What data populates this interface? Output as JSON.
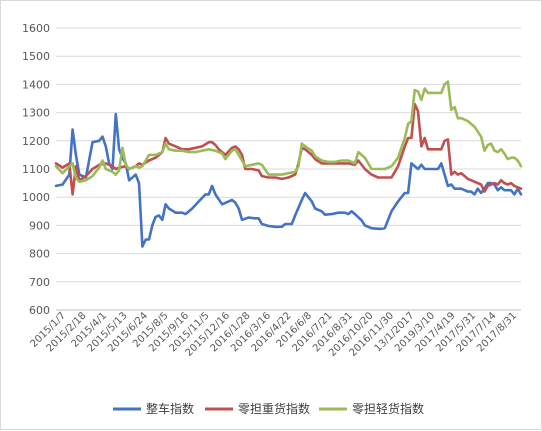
{
  "chart_data": {
    "type": "line",
    "title": "",
    "xlabel": "",
    "ylabel": "",
    "ylim": [
      600,
      1600
    ],
    "yticks": [
      600,
      700,
      800,
      900,
      1000,
      1100,
      1200,
      1300,
      1400,
      1500,
      1600
    ],
    "grid": "horizontal",
    "legend_position": "bottom",
    "x_tick_labels": [
      "2015/1/7",
      "2015/2/18",
      "2015/4/1",
      "2015/5/13",
      "2015/6/24",
      "2015/8/5",
      "2015/9/16",
      "2015/11/5",
      "2015/12/16",
      "2016/1/28",
      "2016/3/16",
      "2016/4/22",
      "2016/6/8",
      "2016/7/21",
      "2016/8/31",
      "2016/10/20",
      "2016/11/30",
      "13/1/2017",
      "2019/3/10",
      "2017/4/19",
      "2017/5/31",
      "2017/7/14",
      "2017/8/31"
    ],
    "x_points": 140,
    "series": [
      {
        "name": "整车指数",
        "color": "#4472c4",
        "points": [
          [
            0,
            1040
          ],
          [
            2,
            1045
          ],
          [
            4,
            1080
          ],
          [
            5,
            1240
          ],
          [
            6,
            1150
          ],
          [
            7,
            1080
          ],
          [
            9,
            1070
          ],
          [
            11,
            1195
          ],
          [
            13,
            1200
          ],
          [
            14,
            1215
          ],
          [
            15,
            1180
          ],
          [
            16,
            1120
          ],
          [
            17,
            1100
          ],
          [
            18,
            1295
          ],
          [
            19,
            1170
          ],
          [
            20,
            1140
          ],
          [
            21,
            1120
          ],
          [
            22,
            1060
          ],
          [
            24,
            1080
          ],
          [
            25,
            1050
          ],
          [
            26,
            825
          ],
          [
            27,
            850
          ],
          [
            28,
            850
          ],
          [
            29,
            900
          ],
          [
            30,
            930
          ],
          [
            31,
            935
          ],
          [
            32,
            920
          ],
          [
            33,
            975
          ],
          [
            34,
            960
          ],
          [
            36,
            945
          ],
          [
            38,
            945
          ],
          [
            39,
            940
          ],
          [
            41,
            960
          ],
          [
            43,
            985
          ],
          [
            45,
            1010
          ],
          [
            46,
            1010
          ],
          [
            47,
            1040
          ],
          [
            48,
            1010
          ],
          [
            50,
            975
          ],
          [
            52,
            985
          ],
          [
            53,
            990
          ],
          [
            54,
            980
          ],
          [
            55,
            960
          ],
          [
            56,
            920
          ],
          [
            58,
            928
          ],
          [
            60,
            925
          ],
          [
            61,
            925
          ],
          [
            62,
            905
          ],
          [
            64,
            898
          ],
          [
            66,
            895
          ],
          [
            68,
            895
          ],
          [
            69,
            905
          ],
          [
            71,
            905
          ],
          [
            72,
            935
          ],
          [
            74,
            990
          ],
          [
            75,
            1015
          ],
          [
            76,
            1000
          ],
          [
            77,
            985
          ],
          [
            78,
            960
          ],
          [
            80,
            950
          ],
          [
            81,
            938
          ],
          [
            83,
            940
          ],
          [
            85,
            945
          ],
          [
            87,
            945
          ],
          [
            88,
            940
          ],
          [
            89,
            950
          ],
          [
            90,
            940
          ],
          [
            92,
            918
          ],
          [
            93,
            900
          ],
          [
            95,
            890
          ],
          [
            97,
            888
          ],
          [
            98,
            888
          ],
          [
            99,
            890
          ],
          [
            100,
            920
          ],
          [
            101,
            950
          ],
          [
            103,
            985
          ],
          [
            104,
            1000
          ],
          [
            105,
            1015
          ],
          [
            106,
            1015
          ],
          [
            107,
            1120
          ],
          [
            108,
            1110
          ],
          [
            109,
            1100
          ],
          [
            110,
            1115
          ],
          [
            111,
            1100
          ],
          [
            113,
            1100
          ],
          [
            115,
            1100
          ],
          [
            116,
            1120
          ],
          [
            117,
            1080
          ],
          [
            118,
            1040
          ],
          [
            119,
            1045
          ],
          [
            120,
            1030
          ],
          [
            122,
            1030
          ],
          [
            124,
            1020
          ],
          [
            125,
            1020
          ],
          [
            126,
            1010
          ],
          [
            127,
            1030
          ],
          [
            128,
            1015
          ],
          [
            129,
            1030
          ],
          [
            130,
            1050
          ],
          [
            131,
            1050
          ],
          [
            132,
            1045
          ],
          [
            133,
            1025
          ],
          [
            134,
            1035
          ],
          [
            135,
            1025
          ],
          [
            136,
            1025
          ],
          [
            137,
            1025
          ],
          [
            138,
            1010
          ],
          [
            139,
            1030
          ],
          [
            140,
            1010
          ]
        ]
      },
      {
        "name": "零担重货指数",
        "color": "#c0504d",
        "points": [
          [
            0,
            1120
          ],
          [
            2,
            1105
          ],
          [
            4,
            1120
          ],
          [
            5,
            1010
          ],
          [
            6,
            1110
          ],
          [
            7,
            1060
          ],
          [
            9,
            1075
          ],
          [
            11,
            1100
          ],
          [
            13,
            1115
          ],
          [
            15,
            1120
          ],
          [
            17,
            1110
          ],
          [
            18,
            1100
          ],
          [
            19,
            1105
          ],
          [
            21,
            1110
          ],
          [
            22,
            1100
          ],
          [
            24,
            1110
          ],
          [
            25,
            1120
          ],
          [
            26,
            1115
          ],
          [
            28,
            1130
          ],
          [
            30,
            1140
          ],
          [
            32,
            1160
          ],
          [
            33,
            1210
          ],
          [
            34,
            1190
          ],
          [
            36,
            1180
          ],
          [
            38,
            1170
          ],
          [
            40,
            1170
          ],
          [
            42,
            1175
          ],
          [
            44,
            1180
          ],
          [
            46,
            1195
          ],
          [
            47,
            1195
          ],
          [
            48,
            1185
          ],
          [
            49,
            1170
          ],
          [
            50,
            1160
          ],
          [
            51,
            1150
          ],
          [
            53,
            1175
          ],
          [
            54,
            1180
          ],
          [
            55,
            1170
          ],
          [
            56,
            1150
          ],
          [
            57,
            1100
          ],
          [
            59,
            1100
          ],
          [
            61,
            1095
          ],
          [
            62,
            1075
          ],
          [
            64,
            1070
          ],
          [
            66,
            1070
          ],
          [
            68,
            1065
          ],
          [
            70,
            1070
          ],
          [
            72,
            1080
          ],
          [
            73,
            1120
          ],
          [
            74,
            1175
          ],
          [
            75,
            1170
          ],
          [
            77,
            1150
          ],
          [
            78,
            1135
          ],
          [
            80,
            1120
          ],
          [
            82,
            1120
          ],
          [
            84,
            1120
          ],
          [
            86,
            1120
          ],
          [
            88,
            1120
          ],
          [
            90,
            1115
          ],
          [
            91,
            1130
          ],
          [
            93,
            1100
          ],
          [
            95,
            1080
          ],
          [
            97,
            1070
          ],
          [
            99,
            1070
          ],
          [
            101,
            1070
          ],
          [
            103,
            1110
          ],
          [
            105,
            1180
          ],
          [
            106,
            1210
          ],
          [
            107,
            1210
          ],
          [
            108,
            1330
          ],
          [
            109,
            1305
          ],
          [
            110,
            1180
          ],
          [
            111,
            1210
          ],
          [
            112,
            1170
          ],
          [
            114,
            1170
          ],
          [
            116,
            1170
          ],
          [
            117,
            1200
          ],
          [
            118,
            1205
          ],
          [
            119,
            1080
          ],
          [
            120,
            1090
          ],
          [
            121,
            1080
          ],
          [
            122,
            1085
          ],
          [
            124,
            1065
          ],
          [
            126,
            1055
          ],
          [
            128,
            1045
          ],
          [
            129,
            1020
          ],
          [
            130,
            1040
          ],
          [
            132,
            1050
          ],
          [
            133,
            1045
          ],
          [
            134,
            1060
          ],
          [
            135,
            1050
          ],
          [
            136,
            1045
          ],
          [
            137,
            1050
          ],
          [
            138,
            1040
          ],
          [
            139,
            1035
          ],
          [
            140,
            1030
          ]
        ]
      },
      {
        "name": "零担轻货指数",
        "color": "#9bbb59",
        "points": [
          [
            0,
            1110
          ],
          [
            2,
            1085
          ],
          [
            4,
            1110
          ],
          [
            5,
            1120
          ],
          [
            6,
            1070
          ],
          [
            7,
            1055
          ],
          [
            9,
            1060
          ],
          [
            11,
            1075
          ],
          [
            13,
            1105
          ],
          [
            14,
            1130
          ],
          [
            15,
            1100
          ],
          [
            17,
            1090
          ],
          [
            18,
            1080
          ],
          [
            19,
            1095
          ],
          [
            20,
            1175
          ],
          [
            21,
            1115
          ],
          [
            22,
            1100
          ],
          [
            24,
            1110
          ],
          [
            25,
            1105
          ],
          [
            26,
            1110
          ],
          [
            28,
            1150
          ],
          [
            30,
            1150
          ],
          [
            32,
            1160
          ],
          [
            33,
            1190
          ],
          [
            34,
            1170
          ],
          [
            36,
            1165
          ],
          [
            38,
            1165
          ],
          [
            40,
            1160
          ],
          [
            42,
            1160
          ],
          [
            44,
            1165
          ],
          [
            46,
            1170
          ],
          [
            48,
            1165
          ],
          [
            50,
            1155
          ],
          [
            51,
            1135
          ],
          [
            53,
            1165
          ],
          [
            54,
            1170
          ],
          [
            55,
            1150
          ],
          [
            56,
            1130
          ],
          [
            57,
            1110
          ],
          [
            59,
            1115
          ],
          [
            61,
            1120
          ],
          [
            62,
            1115
          ],
          [
            64,
            1080
          ],
          [
            66,
            1080
          ],
          [
            68,
            1080
          ],
          [
            70,
            1085
          ],
          [
            72,
            1090
          ],
          [
            73,
            1110
          ],
          [
            74,
            1190
          ],
          [
            75,
            1180
          ],
          [
            77,
            1165
          ],
          [
            78,
            1145
          ],
          [
            80,
            1130
          ],
          [
            82,
            1125
          ],
          [
            84,
            1125
          ],
          [
            86,
            1130
          ],
          [
            88,
            1130
          ],
          [
            90,
            1120
          ],
          [
            91,
            1160
          ],
          [
            93,
            1140
          ],
          [
            95,
            1100
          ],
          [
            97,
            1100
          ],
          [
            99,
            1100
          ],
          [
            101,
            1110
          ],
          [
            103,
            1140
          ],
          [
            105,
            1210
          ],
          [
            106,
            1260
          ],
          [
            107,
            1270
          ],
          [
            108,
            1380
          ],
          [
            109,
            1375
          ],
          [
            110,
            1345
          ],
          [
            111,
            1385
          ],
          [
            112,
            1370
          ],
          [
            114,
            1370
          ],
          [
            116,
            1370
          ],
          [
            117,
            1400
          ],
          [
            118,
            1410
          ],
          [
            119,
            1310
          ],
          [
            120,
            1320
          ],
          [
            121,
            1280
          ],
          [
            122,
            1280
          ],
          [
            124,
            1270
          ],
          [
            126,
            1250
          ],
          [
            128,
            1215
          ],
          [
            129,
            1165
          ],
          [
            130,
            1185
          ],
          [
            131,
            1190
          ],
          [
            132,
            1165
          ],
          [
            133,
            1160
          ],
          [
            134,
            1170
          ],
          [
            135,
            1155
          ],
          [
            136,
            1135
          ],
          [
            137,
            1140
          ],
          [
            138,
            1140
          ],
          [
            139,
            1130
          ],
          [
            140,
            1110
          ]
        ]
      }
    ]
  }
}
